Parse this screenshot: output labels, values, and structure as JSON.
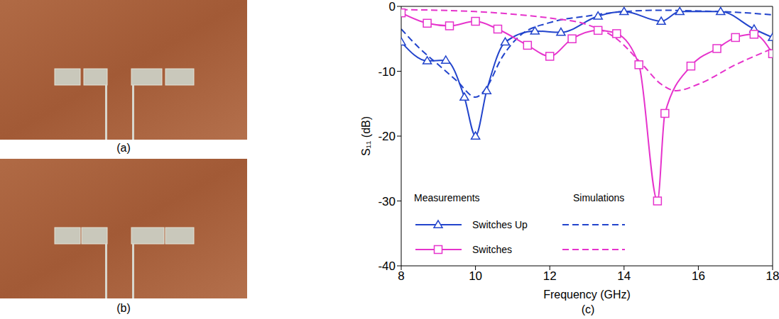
{
  "chart_data": {
    "type": "line",
    "panels": [
      "(a)",
      "(b)",
      "(c)"
    ],
    "x_label": "Frequency (GHz)",
    "y_label": "S₁₁ (dB)",
    "xlim": [
      8,
      18
    ],
    "xticks": [
      8,
      10,
      12,
      14,
      16,
      18
    ],
    "ylim": [
      -40,
      0
    ],
    "yticks": [
      -40,
      -30,
      -20,
      -10,
      0
    ],
    "grid": false,
    "legend": "lower left",
    "legend_titles": [
      "Measurements",
      "Simulations"
    ],
    "series": [
      {
        "name": "Switches Up",
        "color": "#2244cc",
        "marker": "triangle",
        "line_style": "solid",
        "x": [
          8,
          8.7,
          9.2,
          9.7,
          10,
          10.3,
          10.8,
          11.6,
          12.3,
          13.3,
          14,
          15,
          15.5,
          16.6,
          17.5,
          18
        ],
        "values": [
          -5.5,
          -8.4,
          -8.3,
          -14,
          -20,
          -13,
          -5.5,
          -3.8,
          -4,
          -1.5,
          -0.8,
          -2.3,
          -0.8,
          -0.8,
          -3.5,
          -4.8
        ]
      },
      {
        "name": "Switches Up",
        "color": "#2244cc",
        "marker": "none",
        "line_style": "dashed",
        "x": [
          8,
          8.5,
          9,
          9.5,
          10,
          10.3,
          10.7,
          11.2,
          12,
          13,
          14,
          15,
          16,
          17,
          18
        ],
        "values": [
          -3.5,
          -6.5,
          -9,
          -11.5,
          -14,
          -12.5,
          -8,
          -4.5,
          -2.5,
          -1.5,
          -0.8,
          -0.6,
          -0.7,
          -0.9,
          -1.3
        ]
      },
      {
        "name": "Switches",
        "color": "#e633cc",
        "marker": "square",
        "line_style": "solid",
        "x": [
          8,
          8.7,
          9.3,
          10,
          10.6,
          11.4,
          12,
          12.6,
          13.3,
          13.8,
          14.4,
          14.9,
          15.1,
          15.8,
          16.5,
          17,
          17.5,
          18
        ],
        "values": [
          -1,
          -2.6,
          -3,
          -2.3,
          -3.5,
          -6,
          -7.7,
          -5,
          -3.7,
          -4.2,
          -9,
          -30,
          -16.5,
          -9.2,
          -6.5,
          -4.8,
          -4.3,
          -7.3
        ]
      },
      {
        "name": "Switches",
        "color": "#e633cc",
        "marker": "none",
        "line_style": "dashed",
        "x": [
          8,
          10,
          11,
          12,
          13,
          13.8,
          14.5,
          15,
          15.4,
          16,
          17,
          18
        ],
        "values": [
          -0.5,
          -0.8,
          -1.2,
          -1.8,
          -2.8,
          -5,
          -9,
          -12,
          -13,
          -12,
          -9,
          -6.5
        ]
      }
    ]
  }
}
